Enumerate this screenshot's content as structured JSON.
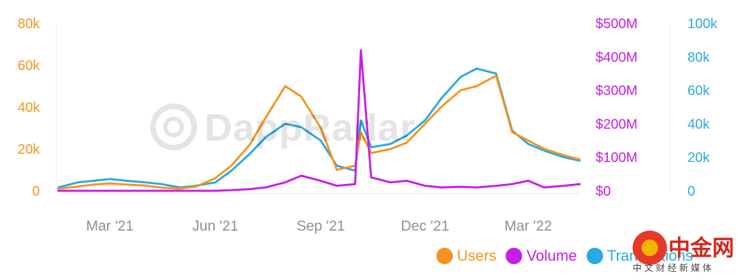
{
  "chart_data": {
    "type": "line",
    "x_ticks": [
      "Mar '21",
      "Jun '21",
      "Sep '21",
      "Dec '21",
      "Mar '22"
    ],
    "x": [
      "2021-01-15",
      "2021-02-01",
      "2021-02-15",
      "2021-03-01",
      "2021-03-15",
      "2021-04-01",
      "2021-04-15",
      "2021-05-01",
      "2021-05-15",
      "2021-06-01",
      "2021-06-15",
      "2021-07-01",
      "2021-07-15",
      "2021-08-01",
      "2021-08-15",
      "2021-09-01",
      "2021-09-15",
      "2021-10-01",
      "2021-10-06",
      "2021-10-15",
      "2021-11-01",
      "2021-11-15",
      "2021-12-01",
      "2021-12-15",
      "2022-01-01",
      "2022-01-15",
      "2022-02-01",
      "2022-02-15",
      "2022-03-01",
      "2022-03-15",
      "2022-04-01",
      "2022-04-15"
    ],
    "axes": {
      "left": {
        "ticks": [
          "0",
          "20k",
          "40k",
          "60k",
          "80k"
        ],
        "ylim": [
          0,
          80000
        ],
        "color": "#f7931e"
      },
      "middle": {
        "ticks": [
          "$0",
          "$100M",
          "$200M",
          "$300M",
          "$400M",
          "$500M"
        ],
        "ylim": [
          0,
          500000000
        ],
        "color": "#c71ee6"
      },
      "right": {
        "ticks": [
          "0",
          "20k",
          "40k",
          "60k",
          "80k",
          "100k"
        ],
        "ylim": [
          0,
          100000
        ],
        "color": "#29a9e0"
      }
    },
    "series": [
      {
        "name": "Users",
        "axis": "left",
        "color": "#f7931e",
        "values": [
          1000,
          2000,
          3000,
          3500,
          3000,
          2500,
          1500,
          1000,
          2000,
          6000,
          12000,
          22000,
          35000,
          50000,
          45000,
          30000,
          10000,
          12000,
          28000,
          18000,
          20000,
          23000,
          32000,
          40000,
          48000,
          50000,
          55000,
          28000,
          24000,
          20000,
          17000,
          15000
        ]
      },
      {
        "name": "Volume",
        "axis": "middle",
        "color": "#c71ee6",
        "values": [
          0,
          0,
          0,
          0,
          0,
          0,
          0,
          0,
          0,
          0,
          2000000,
          5000000,
          10000000,
          25000000,
          45000000,
          30000000,
          15000000,
          20000000,
          420000000,
          40000000,
          25000000,
          30000000,
          15000000,
          10000000,
          12000000,
          10000000,
          15000000,
          20000000,
          30000000,
          10000000,
          15000000,
          20000000
        ]
      },
      {
        "name": "Transactions",
        "axis": "right",
        "color": "#29a9e0",
        "values": [
          2000,
          5000,
          6000,
          7000,
          6000,
          5000,
          4000,
          2000,
          3000,
          5000,
          12000,
          22000,
          32000,
          40000,
          38000,
          30000,
          15000,
          12000,
          42000,
          26000,
          28000,
          33000,
          42000,
          55000,
          68000,
          73000,
          70000,
          36000,
          28000,
          24000,
          20000,
          18000
        ]
      }
    ],
    "legend": {
      "position": "bottom-right"
    },
    "grid": false
  },
  "watermark": {
    "text": "DappRadar"
  },
  "brand": {
    "main": "中金网",
    "sub": "中文财经新媒体"
  }
}
